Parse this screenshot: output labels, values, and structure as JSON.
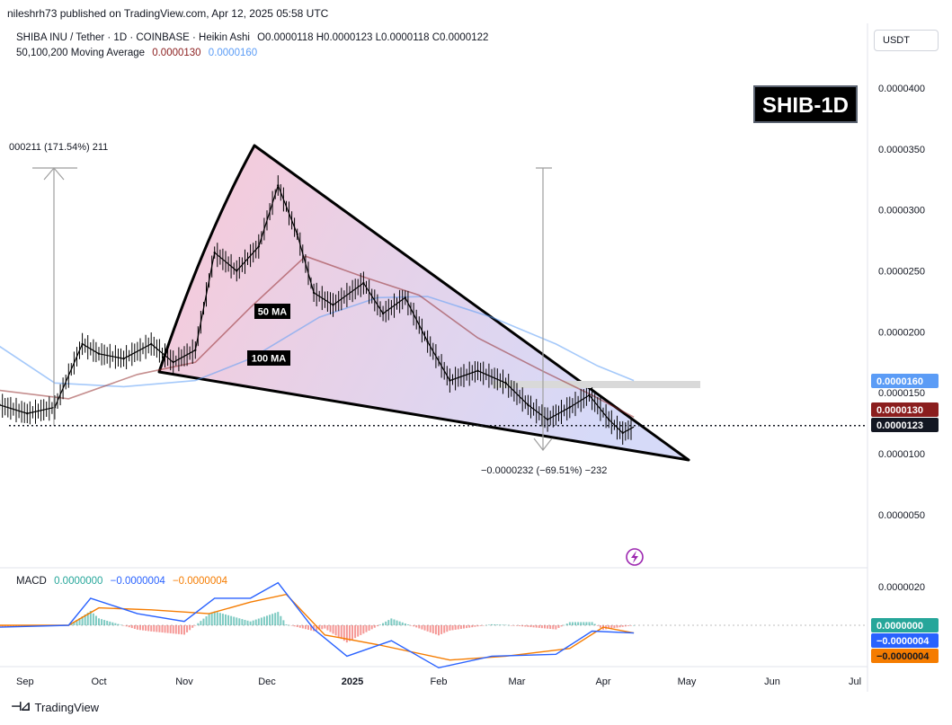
{
  "header": {
    "publisher": "nileshrh73 published on TradingView.com, Apr 12, 2025 05:58 UTC",
    "currency_button": "USDT"
  },
  "legend": {
    "symbol": "SHIBA INU / Tether · 1D · COINBASE · Heikin Ashi",
    "ohlc": "O0.0000118 H0.0000123 L0.0000118 C0.0000122",
    "ma_label": "50,100,200 Moving Average",
    "ma_value_1": "0.0000130",
    "ma_value_2": "0.0000160"
  },
  "badges": {
    "ticker": "SHIB-1D",
    "ma50": "50 MA",
    "ma100": "100 MA"
  },
  "annotations": {
    "rise": "000211 (171.54%) 211",
    "fall": "−0.0000232 (−69.51%) −232"
  },
  "price_scale": {
    "labels": [
      "0.0000400",
      "0.0000350",
      "0.0000300",
      "0.0000250",
      "0.0000200",
      "0.0000150",
      "0.0000100",
      "0.0000050"
    ],
    "tag_ma_blue": "0.0000160",
    "tag_ma_red": "0.0000130",
    "tag_last": "0.0000123"
  },
  "macd": {
    "title": "MACD",
    "hist_value": "0.0000000",
    "macd_value": "−0.0000004",
    "signal_value": "−0.0000004",
    "scale_label": "0.0000020",
    "tag_hist": "0.0000000",
    "tag_macd": "−0.0000004",
    "tag_signal": "−0.0000004"
  },
  "time_axis": [
    "Sep",
    "Oct",
    "Nov",
    "Dec",
    "2025",
    "Feb",
    "Mar",
    "Apr",
    "May",
    "Jun",
    "Jul"
  ],
  "footer": {
    "brand": "TradingView"
  },
  "colors": {
    "ma_red": "#8b1e1e",
    "ma_blue": "#5b9cf6",
    "macd_green": "#26a69a",
    "macd_blue": "#2962ff",
    "macd_orange": "#f57c00",
    "last_price": "#131722"
  },
  "chart_data": {
    "type": "line",
    "title": "SHIBA INU / Tether · 1D · COINBASE · Heikin Ashi",
    "ylim": [
      4e-06,
      4.2e-05
    ],
    "x": [
      "Sep",
      "Oct",
      "Nov",
      "Dec",
      "2025",
      "Feb",
      "Mar",
      "Apr",
      "May",
      "Jun",
      "Jul"
    ],
    "series": [
      {
        "name": "SHIBA INU / Tether",
        "points": [
          [
            "2024-08-26",
            1.4e-05
          ],
          [
            "2024-09-05",
            1.33e-05
          ],
          [
            "2024-09-15",
            1.38e-05
          ],
          [
            "2024-09-25",
            1.9e-05
          ],
          [
            "2024-10-01",
            1.82e-05
          ],
          [
            "2024-10-10",
            1.78e-05
          ],
          [
            "2024-10-20",
            1.9e-05
          ],
          [
            "2024-10-28",
            1.75e-05
          ],
          [
            "2024-11-05",
            1.85e-05
          ],
          [
            "2024-11-12",
            2.65e-05
          ],
          [
            "2024-11-20",
            2.5e-05
          ],
          [
            "2024-11-28",
            2.7e-05
          ],
          [
            "2024-12-05",
            3.2e-05
          ],
          [
            "2024-12-12",
            2.8e-05
          ],
          [
            "2024-12-18",
            2.32e-05
          ],
          [
            "2024-12-25",
            2.22e-05
          ],
          [
            "2025-01-05",
            2.4e-05
          ],
          [
            "2025-01-12",
            2.15e-05
          ],
          [
            "2025-01-20",
            2.28e-05
          ],
          [
            "2025-01-28",
            1.92e-05
          ],
          [
            "2025-02-05",
            1.6e-05
          ],
          [
            "2025-02-15",
            1.68e-05
          ],
          [
            "2025-02-25",
            1.58e-05
          ],
          [
            "2025-03-05",
            1.4e-05
          ],
          [
            "2025-03-12",
            1.28e-05
          ],
          [
            "2025-03-20",
            1.38e-05
          ],
          [
            "2025-03-27",
            1.48e-05
          ],
          [
            "2025-04-03",
            1.28e-05
          ],
          [
            "2025-04-08",
            1.17e-05
          ],
          [
            "2025-04-12",
            1.22e-05
          ]
        ]
      },
      {
        "name": "MA (red)",
        "points": [
          [
            "2024-08-26",
            1.52e-05
          ],
          [
            "2024-09-20",
            1.45e-05
          ],
          [
            "2024-10-15",
            1.65e-05
          ],
          [
            "2024-11-05",
            1.75e-05
          ],
          [
            "2024-11-25",
            2.2e-05
          ],
          [
            "2024-12-15",
            2.62e-05
          ],
          [
            "2025-01-05",
            2.45e-05
          ],
          [
            "2025-01-25",
            2.3e-05
          ],
          [
            "2025-02-15",
            1.95e-05
          ],
          [
            "2025-03-10",
            1.68e-05
          ],
          [
            "2025-03-28",
            1.48e-05
          ],
          [
            "2025-04-12",
            1.3e-05
          ]
        ]
      },
      {
        "name": "MA (blue)",
        "points": [
          [
            "2024-08-26",
            1.88e-05
          ],
          [
            "2024-09-15",
            1.58e-05
          ],
          [
            "2024-10-10",
            1.55e-05
          ],
          [
            "2024-11-05",
            1.6e-05
          ],
          [
            "2024-11-25",
            1.78e-05
          ],
          [
            "2024-12-20",
            2.12e-05
          ],
          [
            "2025-01-10",
            2.28e-05
          ],
          [
            "2025-01-28",
            2.29e-05
          ],
          [
            "2025-02-20",
            2.12e-05
          ],
          [
            "2025-03-15",
            1.9e-05
          ],
          [
            "2025-03-30",
            1.72e-05
          ],
          [
            "2025-04-12",
            1.6e-05
          ]
        ]
      }
    ],
    "macd": {
      "ylim": [
        -5e-06,
        3e-06
      ],
      "macd_line": [
        [
          "2024-08-26",
          -1e-07
        ],
        [
          "2024-09-20",
          0.0
        ],
        [
          "2024-09-28",
          1.4e-06
        ],
        [
          "2024-10-15",
          6e-07
        ],
        [
          "2024-11-01",
          2e-07
        ],
        [
          "2024-11-12",
          1.4e-06
        ],
        [
          "2024-11-25",
          1.4e-06
        ],
        [
          "2024-12-05",
          2.2e-06
        ],
        [
          "2024-12-18",
          -2e-07
        ],
        [
          "2024-12-30",
          -1.6e-06
        ],
        [
          "2025-01-15",
          -8e-07
        ],
        [
          "2025-02-01",
          -2.2e-06
        ],
        [
          "2025-02-20",
          -1.6e-06
        ],
        [
          "2025-03-15",
          -1.5e-06
        ],
        [
          "2025-03-28",
          -3e-07
        ],
        [
          "2025-04-12",
          -4e-07
        ]
      ],
      "signal_line": [
        [
          "2024-08-26",
          0.0
        ],
        [
          "2024-09-20",
          0.0
        ],
        [
          "2024-10-01",
          9e-07
        ],
        [
          "2024-10-20",
          8e-07
        ],
        [
          "2024-11-10",
          6e-07
        ],
        [
          "2024-11-25",
          1.2e-06
        ],
        [
          "2024-12-08",
          1.6e-06
        ],
        [
          "2024-12-22",
          -5e-07
        ],
        [
          "2025-01-10",
          -1e-06
        ],
        [
          "2025-02-05",
          -1.8e-06
        ],
        [
          "2025-02-25",
          -1.6e-06
        ],
        [
          "2025-03-20",
          -1.2e-06
        ],
        [
          "2025-04-01",
          -1e-07
        ],
        [
          "2025-04-12",
          -4e-07
        ]
      ]
    }
  }
}
